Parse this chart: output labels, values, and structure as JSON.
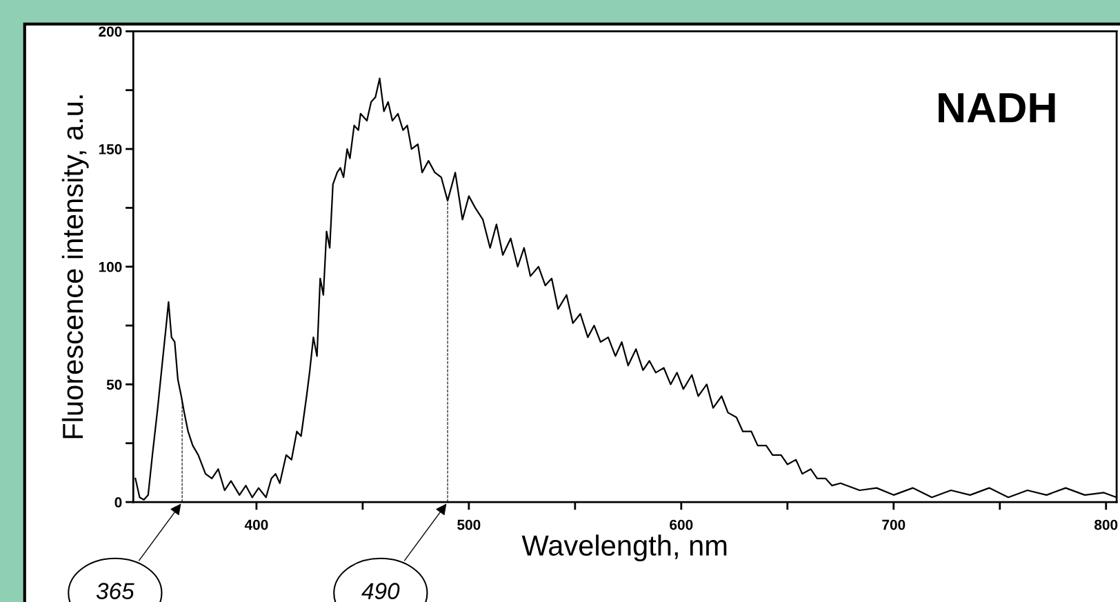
{
  "chart_data": {
    "type": "line",
    "xlabel": "Wavelength, nm",
    "ylabel": "Fluorescence intensity, a.u.",
    "annotations": [
      "NADH"
    ],
    "xlim": [
      342,
      805
    ],
    "ylim": [
      0,
      200
    ],
    "xticks": [
      400,
      {
        "value": 450,
        "label": null
      },
      500,
      {
        "value": 550,
        "label": null
      },
      600,
      {
        "value": 650,
        "label": null
      },
      700,
      {
        "value": 750,
        "label": null
      },
      800
    ],
    "yticks": [
      0,
      {
        "value": 25,
        "label": null
      },
      50,
      {
        "value": 75,
        "label": null
      },
      100,
      {
        "value": 125,
        "label": null
      },
      150,
      {
        "value": 175,
        "label": null
      },
      200
    ],
    "grid": false,
    "legend": false,
    "marker": "none",
    "line_style": "solid",
    "ref_lines": [
      {
        "axis": "x",
        "value": 365,
        "label": "365",
        "line_style": "dashed",
        "color": "#000000"
      },
      {
        "axis": "x",
        "value": 490,
        "label": "490",
        "line_style": "dashed",
        "color": "#000000"
      }
    ],
    "series": [
      {
        "color": "#000000",
        "x": [
          343,
          345,
          347,
          349,
          351,
          353.5,
          356,
          357.5,
          358.6,
          360,
          361.5,
          363,
          364.6,
          366,
          367.8,
          370,
          372.6,
          376,
          379,
          382,
          385,
          388,
          392,
          395,
          398,
          401,
          404.5,
          407,
          409,
          411,
          414,
          416.5,
          419,
          421,
          423.6,
          425,
          426.8,
          428.5,
          430,
          431.5,
          433,
          434.5,
          436,
          438,
          439.5,
          441,
          442.7,
          444,
          446,
          448,
          449,
          452,
          454,
          456,
          458,
          460,
          462,
          464,
          466.6,
          469,
          471,
          473,
          476,
          478,
          481,
          484,
          487,
          490,
          493.6,
          497,
          500,
          503,
          506.6,
          510,
          513,
          516,
          519.7,
          523,
          526,
          529,
          532.8,
          536,
          539,
          542,
          546,
          549,
          552.5,
          556,
          559,
          562,
          565.6,
          569,
          572,
          575,
          578.7,
          582,
          585,
          588,
          591.8,
          595,
          598,
          601,
          605,
          608,
          612,
          615,
          619,
          622,
          626,
          629,
          633,
          636,
          640,
          643,
          647,
          650,
          654,
          657,
          661,
          664,
          668,
          671,
          675,
          684,
          692,
          700,
          709,
          718,
          727,
          736,
          745,
          754,
          763,
          772,
          781,
          790,
          799,
          805
        ],
        "values": [
          10,
          2,
          1,
          3,
          20,
          40,
          62,
          75,
          85,
          70,
          68,
          52,
          45,
          38,
          30,
          24,
          20,
          12,
          10,
          14,
          5,
          9,
          3,
          7,
          2,
          6,
          2,
          10,
          12,
          8,
          20,
          18,
          30,
          28,
          45,
          55,
          70,
          62,
          95,
          88,
          115,
          108,
          135,
          140,
          142,
          138,
          150,
          146,
          160,
          158,
          165,
          162,
          170,
          172,
          180,
          166,
          170,
          162,
          165,
          158,
          160,
          150,
          152,
          140,
          145,
          140,
          138,
          128,
          140,
          120,
          130,
          125,
          120,
          108,
          118,
          105,
          112,
          100,
          108,
          96,
          100,
          92,
          95,
          82,
          88,
          76,
          80,
          70,
          75,
          68,
          70,
          62,
          68,
          58,
          65,
          56,
          60,
          55,
          57,
          50,
          55,
          48,
          54,
          45,
          50,
          40,
          45,
          38,
          36,
          30,
          30,
          24,
          24,
          20,
          20,
          16,
          18,
          12,
          14,
          10,
          10,
          7,
          8,
          5,
          6,
          3,
          6,
          2,
          5,
          3,
          6,
          2,
          5,
          3,
          6,
          3,
          4,
          2
        ]
      }
    ]
  }
}
